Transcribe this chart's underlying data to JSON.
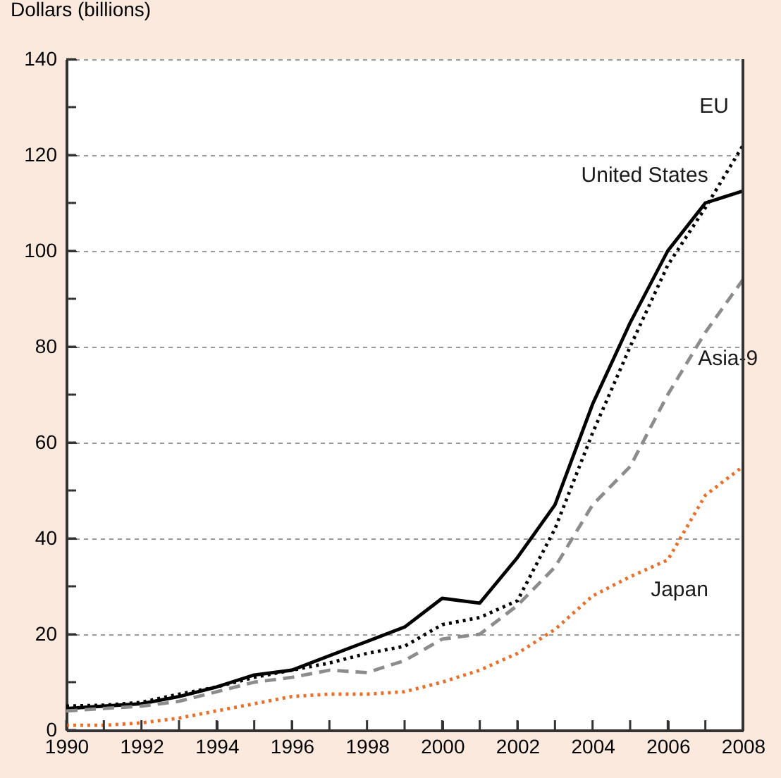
{
  "chart_data": {
    "type": "line",
    "ylabel": "Dollars (billions)",
    "x": [
      1990,
      1991,
      1992,
      1993,
      1994,
      1995,
      1996,
      1997,
      1998,
      1999,
      2000,
      2001,
      2002,
      2003,
      2004,
      2005,
      2006,
      2007,
      2008
    ],
    "series": [
      {
        "name": "United States",
        "color": "#000000",
        "line_style": "solid",
        "values": [
          4.5,
          5,
          5.5,
          7,
          9,
          11.5,
          12.5,
          15.5,
          18.5,
          21.5,
          27.5,
          26.5,
          36,
          47,
          68,
          85,
          100,
          110,
          112.5
        ]
      },
      {
        "name": "EU",
        "color": "#000000",
        "line_style": "dotted",
        "values": [
          5,
          5.2,
          5.8,
          7.5,
          9,
          11,
          12.5,
          14,
          16,
          17.5,
          22,
          23.5,
          27,
          42,
          62,
          80,
          97,
          109,
          122
        ]
      },
      {
        "name": "Asia-9",
        "color": "#8c8c8c",
        "line_style": "dashed",
        "values": [
          4,
          4.5,
          5,
          6,
          8,
          10,
          11,
          12.5,
          12,
          14.5,
          19,
          20,
          26,
          34,
          47,
          55,
          70,
          83,
          94
        ]
      },
      {
        "name": "Japan",
        "color": "#e8702a",
        "line_style": "dotted",
        "values": [
          1,
          1,
          1.5,
          2.5,
          4,
          5.5,
          7,
          7.5,
          7.5,
          8,
          10,
          12.5,
          16,
          21,
          28,
          32,
          35.5,
          49,
          55
        ]
      }
    ],
    "xlim": [
      1990,
      2008
    ],
    "xticks": [
      1990,
      {
        "value": 1991,
        "label": null
      },
      1992,
      {
        "value": 1993,
        "label": null
      },
      1994,
      {
        "value": 1995,
        "label": null
      },
      1996,
      {
        "value": 1997,
        "label": null
      },
      1998,
      {
        "value": 1999,
        "label": null
      },
      2000,
      {
        "value": 2001,
        "label": null
      },
      2002,
      {
        "value": 2003,
        "label": null
      },
      2004,
      {
        "value": 2005,
        "label": null
      },
      2006,
      {
        "value": 2007,
        "label": null
      },
      2008
    ],
    "ylim": [
      0,
      140
    ],
    "yticks": [
      0,
      {
        "value": 10,
        "label": null
      },
      20,
      {
        "value": 30,
        "label": null
      },
      40,
      {
        "value": 50,
        "label": null
      },
      60,
      {
        "value": 70,
        "label": null
      },
      80,
      {
        "value": 90,
        "label": null
      },
      100,
      {
        "value": 110,
        "label": null
      },
      120,
      {
        "value": 130,
        "label": null
      },
      140
    ],
    "grid": "y",
    "legend": false
  }
}
